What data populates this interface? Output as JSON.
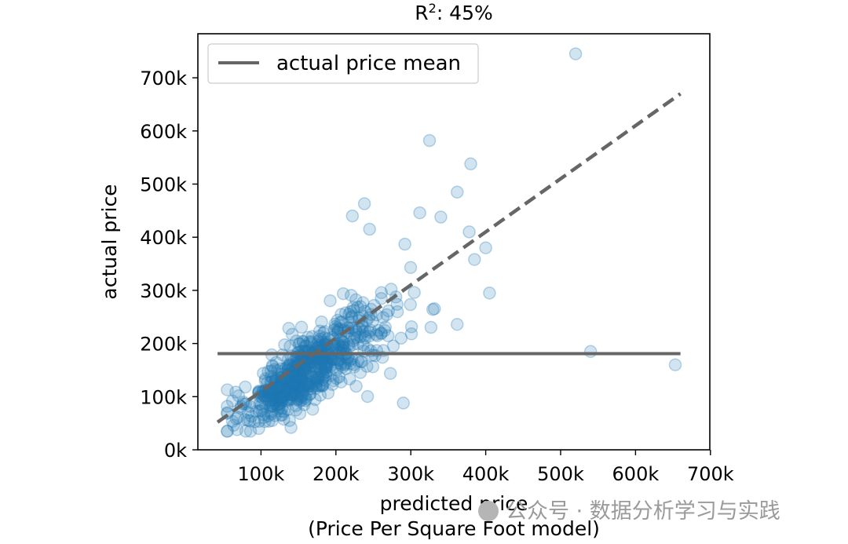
{
  "chart_data": {
    "type": "scatter",
    "title": "R",
    "title_sup": "2",
    "title_suffix": ": 45%",
    "xlabel_line1": "predicted price",
    "xlabel_line2": "(Price Per Square Foot model)",
    "ylabel": "actual price",
    "xlim": [
      0,
      700000
    ],
    "ylim": [
      0,
      750000
    ],
    "x_ticks": [
      100000,
      200000,
      300000,
      400000,
      500000,
      600000,
      700000
    ],
    "x_tick_labels": [
      "100k",
      "200k",
      "300k",
      "400k",
      "500k",
      "600k",
      "700k"
    ],
    "y_ticks": [
      0,
      100000,
      200000,
      300000,
      400000,
      500000,
      600000,
      700000
    ],
    "y_tick_labels": [
      "0k",
      "100k",
      "200k",
      "300k",
      "400k",
      "500k",
      "600k",
      "700k"
    ],
    "legend": {
      "label": "actual price mean",
      "position": "upper-left"
    },
    "mean_line": {
      "y": 181000,
      "x_start": 42000,
      "x_end": 660000,
      "color": "#666666"
    },
    "identity_line": {
      "x_start": 42000,
      "y_start": 52000,
      "x_end": 660000,
      "y_end": 670000,
      "color": "#666666",
      "style": "dashed"
    },
    "point_color": "#1f77b4",
    "point_opacity": 0.2,
    "notable_points": [
      {
        "x": 520000,
        "y": 745000
      },
      {
        "x": 325000,
        "y": 582000
      },
      {
        "x": 380000,
        "y": 538000
      },
      {
        "x": 362000,
        "y": 485000
      },
      {
        "x": 238000,
        "y": 463000
      },
      {
        "x": 312000,
        "y": 446000
      },
      {
        "x": 340000,
        "y": 438000
      },
      {
        "x": 222000,
        "y": 440000
      },
      {
        "x": 245000,
        "y": 415000
      },
      {
        "x": 378000,
        "y": 410000
      },
      {
        "x": 292000,
        "y": 387000
      },
      {
        "x": 400000,
        "y": 380000
      },
      {
        "x": 385000,
        "y": 358000
      },
      {
        "x": 405000,
        "y": 295000
      },
      {
        "x": 362000,
        "y": 236000
      },
      {
        "x": 540000,
        "y": 185000
      },
      {
        "x": 653000,
        "y": 160000
      },
      {
        "x": 290000,
        "y": 88000
      },
      {
        "x": 62000,
        "y": 92000
      },
      {
        "x": 55000,
        "y": 70000
      },
      {
        "x": 68000,
        "y": 38000
      },
      {
        "x": 97000,
        "y": 40000
      },
      {
        "x": 140000,
        "y": 42000
      },
      {
        "x": 115000,
        "y": 55000
      }
    ],
    "cluster_summary": {
      "count": 620,
      "center_x": 180000,
      "center_y": 170000,
      "note": "dense cloud of points between 60k and 360k"
    }
  },
  "watermark": {
    "text": "公众号 · 数据分析学习与实践"
  }
}
